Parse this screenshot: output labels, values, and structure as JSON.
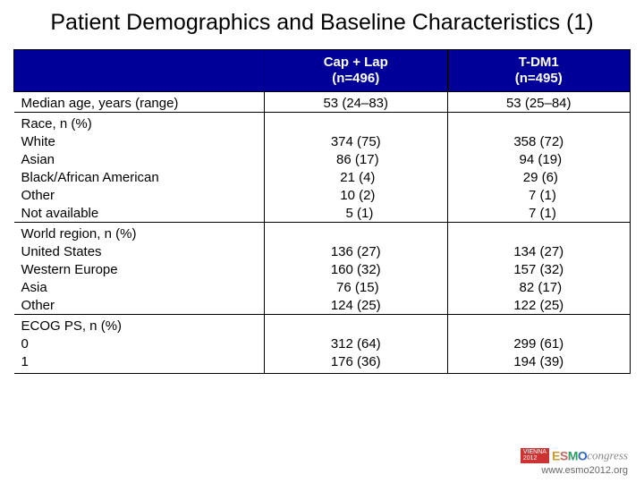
{
  "title": "Patient Demographics and Baseline Characteristics (1)",
  "columns": {
    "c1": {
      "line1": "Cap + Lap",
      "line2": "(n=496)"
    },
    "c2": {
      "line1": "T-DM1",
      "line2": "(n=495)"
    }
  },
  "rows": {
    "median_age": {
      "label": "Median age, years (range)",
      "c1": "53 (24–83)",
      "c2": "53 (25–84)"
    },
    "race_hdr": {
      "label": "Race, n (%)"
    },
    "white": {
      "label": "White",
      "c1": "374 (75)",
      "c2": "358 (72)"
    },
    "asian": {
      "label": "Asian",
      "c1": " 86 (17)",
      "c2": " 94 (19)"
    },
    "black": {
      "label": "Black/African American",
      "c1": " 21 (4)",
      "c2": " 29 (6)"
    },
    "other_r": {
      "label": "Other",
      "c1": " 10 (2)",
      "c2": "  7 (1)"
    },
    "na": {
      "label": "Not available",
      "c1": "  5 (1)",
      "c2": "  7 (1)"
    },
    "region_hdr": {
      "label": "World region, n (%)"
    },
    "us": {
      "label": "United States",
      "c1": "136 (27)",
      "c2": "134 (27)"
    },
    "weur": {
      "label": "Western Europe",
      "c1": "160 (32)",
      "c2": "157 (32)"
    },
    "asia_r": {
      "label": "Asia",
      "c1": " 76 (15)",
      "c2": " 82 (17)"
    },
    "other_reg": {
      "label": "Other",
      "c1": "124 (25)",
      "c2": "122 (25)"
    },
    "ecog_hdr": {
      "label": "ECOG PS, n (%)"
    },
    "ecog0": {
      "label": "0",
      "c1": "312 (64)",
      "c2": "299 (61)"
    },
    "ecog1": {
      "label": "1",
      "c1": "176 (36)",
      "c2": "194 (39)"
    }
  },
  "footer": {
    "vienna1": "VIENNA",
    "vienna2": "2012",
    "congress": "congress",
    "url": "www.esmo2012.org"
  },
  "style": {
    "header_bg": "#000099",
    "border_color": "#000000",
    "title_fontsize": 25,
    "cell_fontsize": 15
  }
}
